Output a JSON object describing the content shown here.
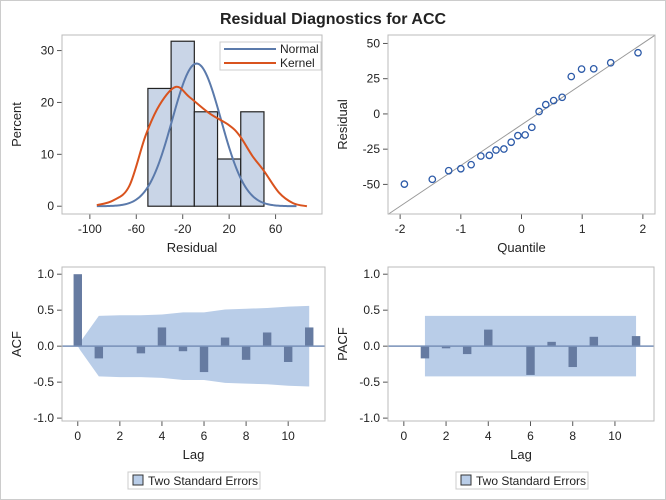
{
  "title": "Residual Diagnostics for ACC",
  "colors": {
    "hist_fill": "#c9d5e7",
    "hist_stroke": "#222222",
    "normal": "#5b7aab",
    "kernel": "#d9531e",
    "marker": "#2c5aa8",
    "refline": "#999999",
    "bar": "#667ba1",
    "band": "#b9cde8",
    "frame": "#bbbbbb"
  },
  "chart_data": [
    {
      "type": "bar",
      "subtype": "histogram",
      "xlabel": "Residual",
      "ylabel": "Percent",
      "xlim": [
        -124,
        100
      ],
      "ylim": [
        -1.5,
        33
      ],
      "xticks": [
        -100,
        -60,
        -20,
        20,
        60
      ],
      "yticks": [
        0,
        10,
        20,
        30
      ],
      "bins": [
        {
          "from": -50,
          "to": -30,
          "value": 22.7
        },
        {
          "from": -30,
          "to": -10,
          "value": 31.8
        },
        {
          "from": -10,
          "to": 10,
          "value": 18.2
        },
        {
          "from": 10,
          "to": 30,
          "value": 9.1
        },
        {
          "from": 30,
          "to": 50,
          "value": 18.2
        }
      ],
      "legend": {
        "placement": "top-right",
        "entries": [
          "Normal",
          "Kernel"
        ]
      },
      "series": [
        {
          "name": "Normal",
          "type": "line",
          "mean": -8,
          "sd": 21,
          "peak": 27.5,
          "range": [
            -94,
            78
          ]
        },
        {
          "name": "Kernel",
          "type": "line",
          "x": [
            -94,
            -80,
            -66,
            -52,
            -40,
            -26,
            -14,
            3,
            20,
            29,
            40,
            50,
            63,
            75,
            87
          ],
          "y": [
            0.2,
            1.1,
            3.9,
            13.6,
            19.5,
            23,
            21,
            17.9,
            15.6,
            13.6,
            9.7,
            6.8,
            2.6,
            0.6,
            0
          ]
        }
      ]
    },
    {
      "type": "scatter",
      "subtype": "qq",
      "xlabel": "Quantile",
      "ylabel": "Residual",
      "xlim": [
        -2.2,
        2.2
      ],
      "ylim": [
        -71,
        56
      ],
      "xticks": [
        -2,
        -1,
        0,
        1,
        2
      ],
      "yticks": [
        -50,
        -25,
        0,
        25,
        50
      ],
      "reference_line": {
        "slope": 28.9,
        "intercept": -7.7
      },
      "x": [
        -1.93,
        -1.47,
        -1.2,
        -1.0,
        -0.83,
        -0.67,
        -0.53,
        -0.42,
        -0.29,
        -0.17,
        -0.06,
        0.06,
        0.17,
        0.29,
        0.4,
        0.53,
        0.67,
        0.82,
        0.99,
        1.19,
        1.47,
        1.92
      ],
      "y": [
        -49.8,
        -46.4,
        -40.3,
        -38.9,
        -36,
        -29.9,
        -29.4,
        -25.6,
        -24.9,
        -20.1,
        -15.4,
        -14.9,
        -9.5,
        1.7,
        6.6,
        9.5,
        11.8,
        26.5,
        31.8,
        32,
        36.3,
        43.4
      ]
    },
    {
      "type": "bar",
      "subtype": "acf",
      "xlabel": "Lag",
      "ylabel": "ACF",
      "xlim": [
        -0.75,
        11.75
      ],
      "ylim": [
        -1.04,
        1.1
      ],
      "xticks": [
        0,
        2,
        4,
        6,
        8,
        10
      ],
      "yticks": [
        "-1.0",
        "-0.5",
        "0.0",
        "0.5",
        "1.0"
      ],
      "categories": [
        0,
        1,
        2,
        3,
        4,
        5,
        6,
        7,
        8,
        9,
        10,
        11
      ],
      "values": [
        1.0,
        -0.17,
        0.0,
        -0.1,
        0.26,
        -0.07,
        -0.36,
        0.12,
        -0.19,
        0.19,
        -0.22,
        0.26
      ],
      "band": {
        "lags": [
          0.1,
          1,
          2,
          3,
          4,
          5,
          6,
          7,
          8,
          9,
          10,
          11
        ],
        "se2": [
          0.05,
          0.42,
          0.43,
          0.43,
          0.44,
          0.47,
          0.47,
          0.51,
          0.52,
          0.53,
          0.55,
          0.56
        ]
      },
      "legend": {
        "placement": "bottom",
        "entries": [
          "Two Standard Errors"
        ]
      }
    },
    {
      "type": "bar",
      "subtype": "pacf",
      "xlabel": "Lag",
      "ylabel": "PACF",
      "xlim": [
        -0.75,
        11.85
      ],
      "ylim": [
        -1.04,
        1.1
      ],
      "xticks": [
        0,
        2,
        4,
        6,
        8,
        10
      ],
      "yticks": [
        "-1.0",
        "-0.5",
        "0.0",
        "0.5",
        "1.0"
      ],
      "categories": [
        1,
        2,
        3,
        4,
        5,
        6,
        7,
        8,
        9,
        10,
        11
      ],
      "values": [
        -0.17,
        -0.03,
        -0.11,
        0.23,
        0.0,
        -0.4,
        0.06,
        -0.29,
        0.13,
        0.01,
        0.14
      ],
      "band": {
        "lags": [
          1,
          11
        ],
        "se2": [
          0.42,
          0.42
        ]
      },
      "legend": {
        "placement": "bottom",
        "entries": [
          "Two Standard Errors"
        ]
      }
    }
  ]
}
